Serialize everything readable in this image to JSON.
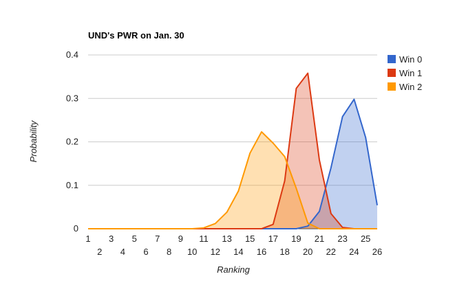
{
  "chart_data": {
    "type": "area",
    "title": "UND's PWR on Jan. 30",
    "xlabel": "Ranking",
    "ylabel": "Probability",
    "x": [
      1,
      2,
      3,
      4,
      5,
      6,
      7,
      8,
      9,
      10,
      11,
      12,
      13,
      14,
      15,
      16,
      17,
      18,
      19,
      20,
      21,
      22,
      23,
      24,
      25,
      26
    ],
    "ylim": [
      0,
      0.4
    ],
    "yticks": [
      0,
      0.1,
      0.2,
      0.3,
      0.4
    ],
    "ytick_labels": [
      "0",
      "0.1",
      "0.2",
      "0.3",
      "0.4"
    ],
    "grid": true,
    "legend_position": "right",
    "series": [
      {
        "name": "Win 0",
        "color": "#3366cc",
        "values": [
          0,
          0,
          0,
          0,
          0,
          0,
          0,
          0,
          0,
          0,
          0,
          0,
          0,
          0,
          0,
          0,
          0,
          0,
          0,
          0.006,
          0.04,
          0.14,
          0.258,
          0.298,
          0.21,
          0.054
        ]
      },
      {
        "name": "Win 1",
        "color": "#dc3912",
        "values": [
          0,
          0,
          0,
          0,
          0,
          0,
          0,
          0,
          0,
          0,
          0,
          0,
          0,
          0,
          0,
          0,
          0.01,
          0.11,
          0.323,
          0.358,
          0.158,
          0.035,
          0.003,
          0,
          0,
          0
        ]
      },
      {
        "name": "Win 2",
        "color": "#ff9900",
        "values": [
          0,
          0,
          0,
          0,
          0,
          0,
          0,
          0,
          0,
          0,
          0.002,
          0.012,
          0.038,
          0.087,
          0.174,
          0.223,
          0.197,
          0.166,
          0.093,
          0.013,
          0,
          0,
          0,
          0,
          0,
          0
        ]
      }
    ]
  }
}
